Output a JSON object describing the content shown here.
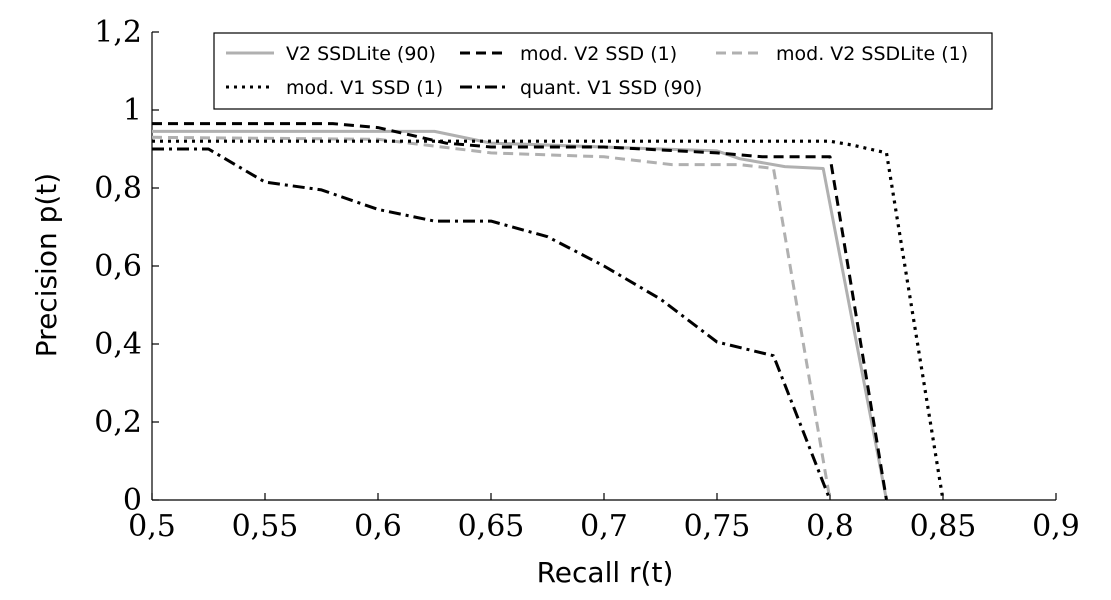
{
  "chart_data": {
    "type": "line",
    "xlabel": "Recall r(t)",
    "ylabel": "Precision p(t)",
    "xlim": [
      0.5,
      0.9
    ],
    "ylim": [
      0,
      1.2
    ],
    "xticks": [
      "0,5",
      "0,55",
      "0,6",
      "0,65",
      "0,7",
      "0,75",
      "0,8",
      "0,85",
      "0,9"
    ],
    "yticks": [
      "0",
      "0,2",
      "0,4",
      "0,6",
      "0,8",
      "1",
      "1,2"
    ],
    "xtick_values": [
      0.5,
      0.55,
      0.6,
      0.65,
      0.7,
      0.75,
      0.8,
      0.85,
      0.9
    ],
    "ytick_values": [
      0,
      0.2,
      0.4,
      0.6,
      0.8,
      1.0,
      1.2
    ],
    "legend_position": "top",
    "grid": false,
    "series": [
      {
        "name": "V2 SSDLite (90)",
        "color": "#b0b0b0",
        "dash": "solid",
        "x": [
          0.5,
          0.625,
          0.65,
          0.75,
          0.76,
          0.78,
          0.797,
          0.825
        ],
        "y": [
          0.945,
          0.945,
          0.915,
          0.895,
          0.875,
          0.855,
          0.85,
          0
        ]
      },
      {
        "name": "mod. V2 SSD (1)",
        "color": "#000000",
        "dash": "dashed",
        "x": [
          0.5,
          0.58,
          0.6,
          0.63,
          0.65,
          0.7,
          0.75,
          0.77,
          0.8,
          0.825
        ],
        "y": [
          0.965,
          0.965,
          0.955,
          0.915,
          0.905,
          0.905,
          0.89,
          0.88,
          0.88,
          0
        ]
      },
      {
        "name": "mod. V2 SSDLite (1)",
        "color": "#b0b0b0",
        "dash": "dashed",
        "x": [
          0.5,
          0.6,
          0.65,
          0.7,
          0.73,
          0.76,
          0.775,
          0.8
        ],
        "y": [
          0.93,
          0.925,
          0.89,
          0.88,
          0.86,
          0.86,
          0.85,
          0
        ]
      },
      {
        "name": "mod. V1 SSD (1)",
        "color": "#000000",
        "dash": "dotted",
        "x": [
          0.5,
          0.6,
          0.65,
          0.8,
          0.81,
          0.825,
          0.85
        ],
        "y": [
          0.92,
          0.92,
          0.92,
          0.92,
          0.91,
          0.89,
          0
        ]
      },
      {
        "name": "quant. V1 SSD (90)",
        "color": "#000000",
        "dash": "dashdot",
        "x": [
          0.5,
          0.525,
          0.55,
          0.575,
          0.6,
          0.625,
          0.65,
          0.675,
          0.7,
          0.725,
          0.75,
          0.775,
          0.8
        ],
        "y": [
          0.9,
          0.9,
          0.815,
          0.795,
          0.745,
          0.715,
          0.715,
          0.675,
          0.6,
          0.515,
          0.405,
          0.37,
          0
        ]
      }
    ]
  }
}
